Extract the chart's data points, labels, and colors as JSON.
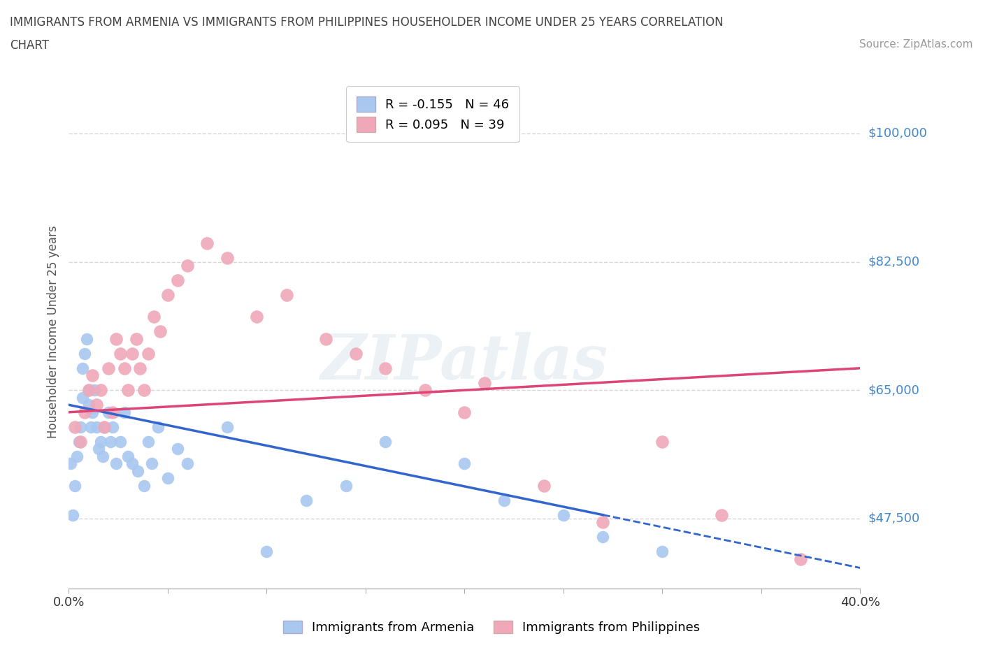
{
  "title_line1": "IMMIGRANTS FROM ARMENIA VS IMMIGRANTS FROM PHILIPPINES HOUSEHOLDER INCOME UNDER 25 YEARS CORRELATION",
  "title_line2": "CHART",
  "source_text": "Source: ZipAtlas.com",
  "ylabel": "Householder Income Under 25 years",
  "xlim": [
    0.0,
    0.4
  ],
  "ylim": [
    38000,
    108000
  ],
  "yticks": [
    47500,
    65000,
    82500,
    100000
  ],
  "ytick_labels": [
    "$47,500",
    "$65,000",
    "$82,500",
    "$100,000"
  ],
  "xticks": [
    0.0,
    0.05,
    0.1,
    0.15,
    0.2,
    0.25,
    0.3,
    0.35,
    0.4
  ],
  "watermark": "ZIPatlas",
  "armenia_color": "#a8c8f0",
  "philippines_color": "#f0a8b8",
  "trend_armenia": "#3366cc",
  "trend_philippines": "#dd4477",
  "background_color": "#ffffff",
  "grid_color": "#cccccc",
  "axis_label_color": "#4488cc",
  "title_color": "#444444",
  "legend_armenia": "R = -0.155   N = 46",
  "legend_philippines": "R = 0.095   N = 39",
  "armenia_x": [
    0.001,
    0.002,
    0.003,
    0.004,
    0.005,
    0.006,
    0.007,
    0.007,
    0.008,
    0.009,
    0.01,
    0.01,
    0.011,
    0.012,
    0.013,
    0.014,
    0.015,
    0.016,
    0.017,
    0.018,
    0.02,
    0.021,
    0.022,
    0.024,
    0.026,
    0.028,
    0.03,
    0.032,
    0.035,
    0.038,
    0.04,
    0.042,
    0.045,
    0.05,
    0.055,
    0.06,
    0.08,
    0.1,
    0.12,
    0.14,
    0.16,
    0.2,
    0.22,
    0.25,
    0.27,
    0.3
  ],
  "armenia_y": [
    55000,
    48000,
    52000,
    56000,
    58000,
    60000,
    64000,
    68000,
    70000,
    72000,
    65000,
    63000,
    60000,
    62000,
    65000,
    60000,
    57000,
    58000,
    56000,
    60000,
    62000,
    58000,
    60000,
    55000,
    58000,
    62000,
    56000,
    55000,
    54000,
    52000,
    58000,
    55000,
    60000,
    53000,
    57000,
    55000,
    60000,
    43000,
    50000,
    52000,
    58000,
    55000,
    50000,
    48000,
    45000,
    43000
  ],
  "philippines_x": [
    0.003,
    0.006,
    0.008,
    0.01,
    0.012,
    0.014,
    0.016,
    0.018,
    0.02,
    0.022,
    0.024,
    0.026,
    0.028,
    0.03,
    0.032,
    0.034,
    0.036,
    0.038,
    0.04,
    0.043,
    0.046,
    0.05,
    0.055,
    0.06,
    0.07,
    0.08,
    0.095,
    0.11,
    0.13,
    0.145,
    0.16,
    0.18,
    0.2,
    0.21,
    0.24,
    0.27,
    0.3,
    0.33,
    0.37
  ],
  "philippines_y": [
    60000,
    58000,
    62000,
    65000,
    67000,
    63000,
    65000,
    60000,
    68000,
    62000,
    72000,
    70000,
    68000,
    65000,
    70000,
    72000,
    68000,
    65000,
    70000,
    75000,
    73000,
    78000,
    80000,
    82000,
    85000,
    83000,
    75000,
    78000,
    72000,
    70000,
    68000,
    65000,
    62000,
    66000,
    52000,
    47000,
    58000,
    48000,
    42000
  ]
}
